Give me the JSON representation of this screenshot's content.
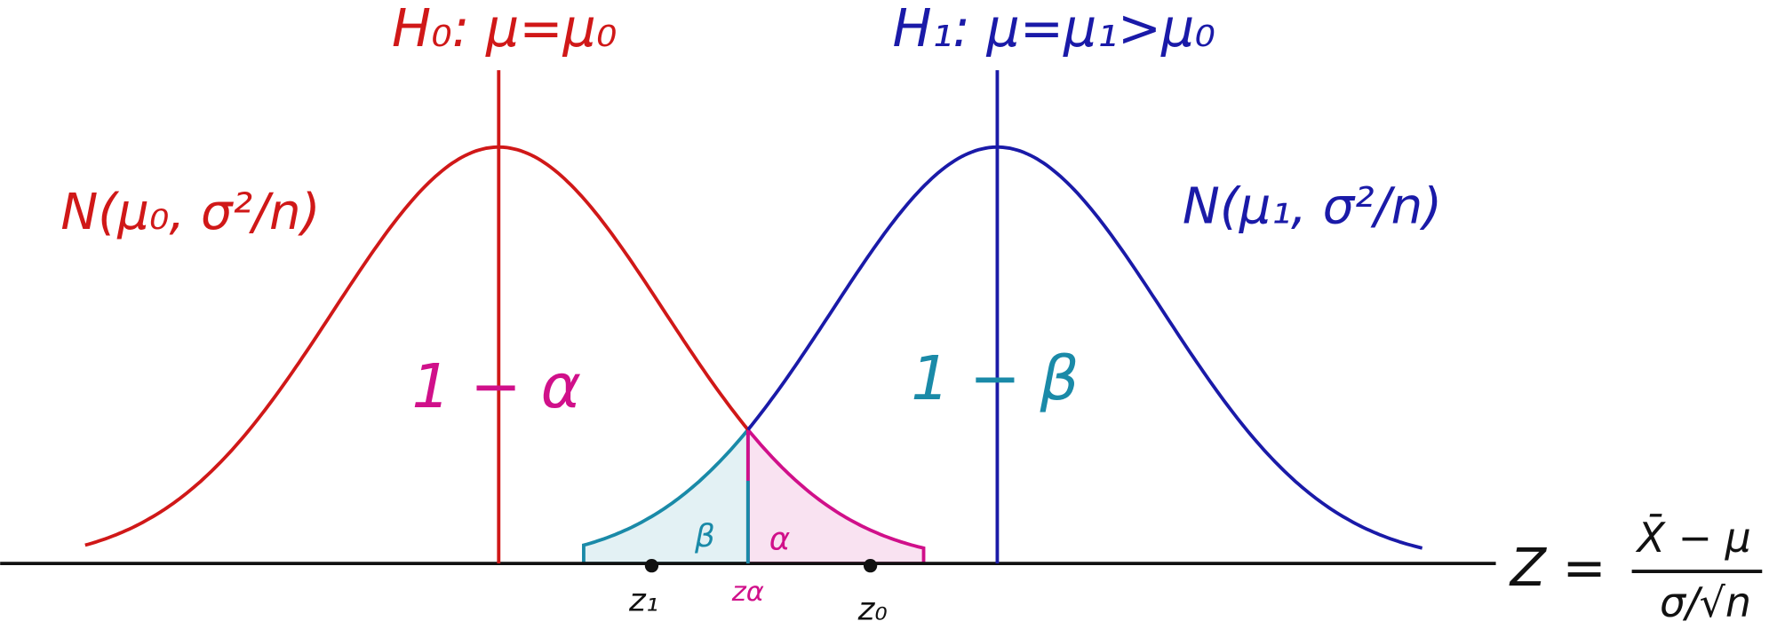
{
  "hypotheses": {
    "null": "H₀: μ=μ₀",
    "alternative": "H₁: μ=μ₁>μ₀"
  },
  "distributions": {
    "null": "N(μ₀, σ²/n)",
    "alternative": "N(μ₁, σ²/n)"
  },
  "regions": {
    "one_minus_alpha": "1 − α",
    "one_minus_beta": "1 − β",
    "beta": "β",
    "alpha": "α"
  },
  "points": {
    "z1": "z₁",
    "z_alpha": "zα",
    "z0": "z₀"
  },
  "formula": {
    "lhs": "Z =",
    "numerator": "X̄ − μ",
    "denominator": "σ/√n"
  }
}
